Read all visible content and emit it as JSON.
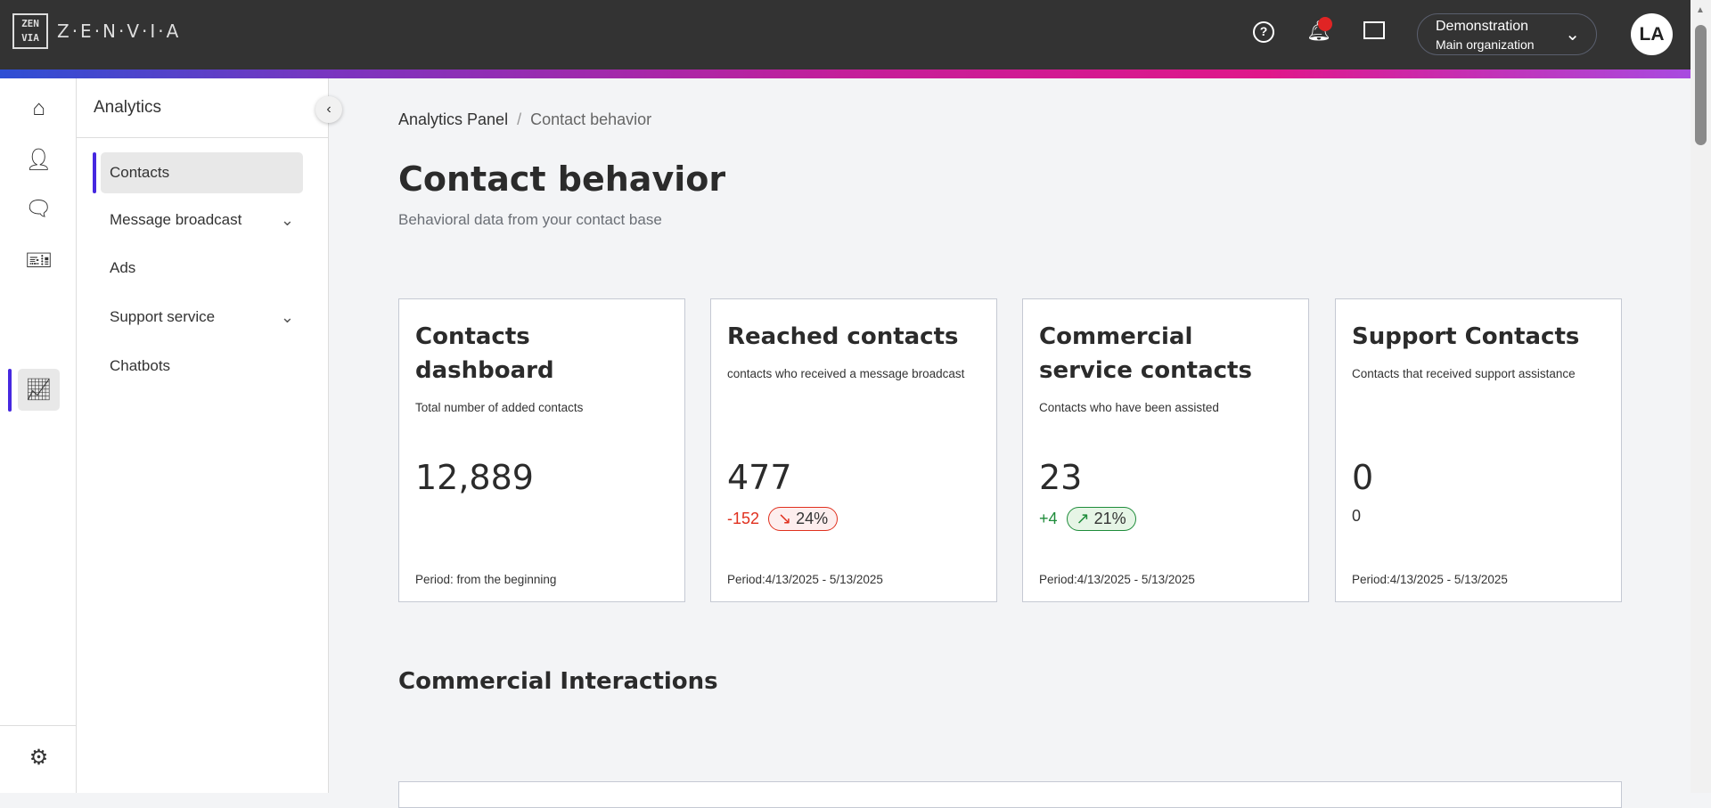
{
  "header": {
    "logo_text": "Z·E·N·V·I·A",
    "logo_mark": "ZEN VIA",
    "org_name": "Demonstration",
    "org_sub": "Main organization",
    "avatar": "LA",
    "icons": [
      "help-icon",
      "bell-icon",
      "inbox-icon",
      "chevron-down-icon"
    ],
    "notification_color": "#e02424"
  },
  "rail": {
    "items": [
      "home",
      "contacts",
      "chat",
      "ticket",
      "analytics",
      "settings"
    ],
    "active": "analytics"
  },
  "sidebar": {
    "title": "Analytics",
    "items": [
      {
        "label": "Contacts",
        "active": true
      },
      {
        "label": "Message broadcast",
        "expandable": true
      },
      {
        "label": "Ads"
      },
      {
        "label": "Support service",
        "expandable": true
      },
      {
        "label": "Chatbots"
      }
    ]
  },
  "breadcrumb": {
    "parent": "Analytics Panel",
    "separator": "/",
    "current": "Contact behavior"
  },
  "page": {
    "title": "Contact behavior",
    "subtitle": "Behavioral data from your contact base"
  },
  "cards": [
    {
      "title": "Contacts dashboard",
      "desc": "Total number of added contacts",
      "value": "12,889",
      "period": "Period: from the beginning"
    },
    {
      "title": "Reached contacts",
      "desc": "contacts who received a message broadcast",
      "value": "477",
      "delta": "-152",
      "pct": "24%",
      "trend": "down",
      "period": "Period:4/13/2025 - 5/13/2025"
    },
    {
      "title": "Commercial service contacts",
      "desc": "Contacts who have been assisted",
      "value": "23",
      "delta": "+4",
      "pct": "21%",
      "trend": "up",
      "period": "Period:4/13/2025 - 5/13/2025"
    },
    {
      "title": "Support Contacts",
      "desc": "Contacts that received support assistance",
      "value": "0",
      "delta": "0",
      "period": "Period:4/13/2025 - 5/13/2025"
    }
  ],
  "section": {
    "title": "Commercial Interactions"
  },
  "colors": {
    "accent": "#4628e0",
    "negative": "#e0301e",
    "positive": "#1e8c3a",
    "header": "#333333"
  }
}
